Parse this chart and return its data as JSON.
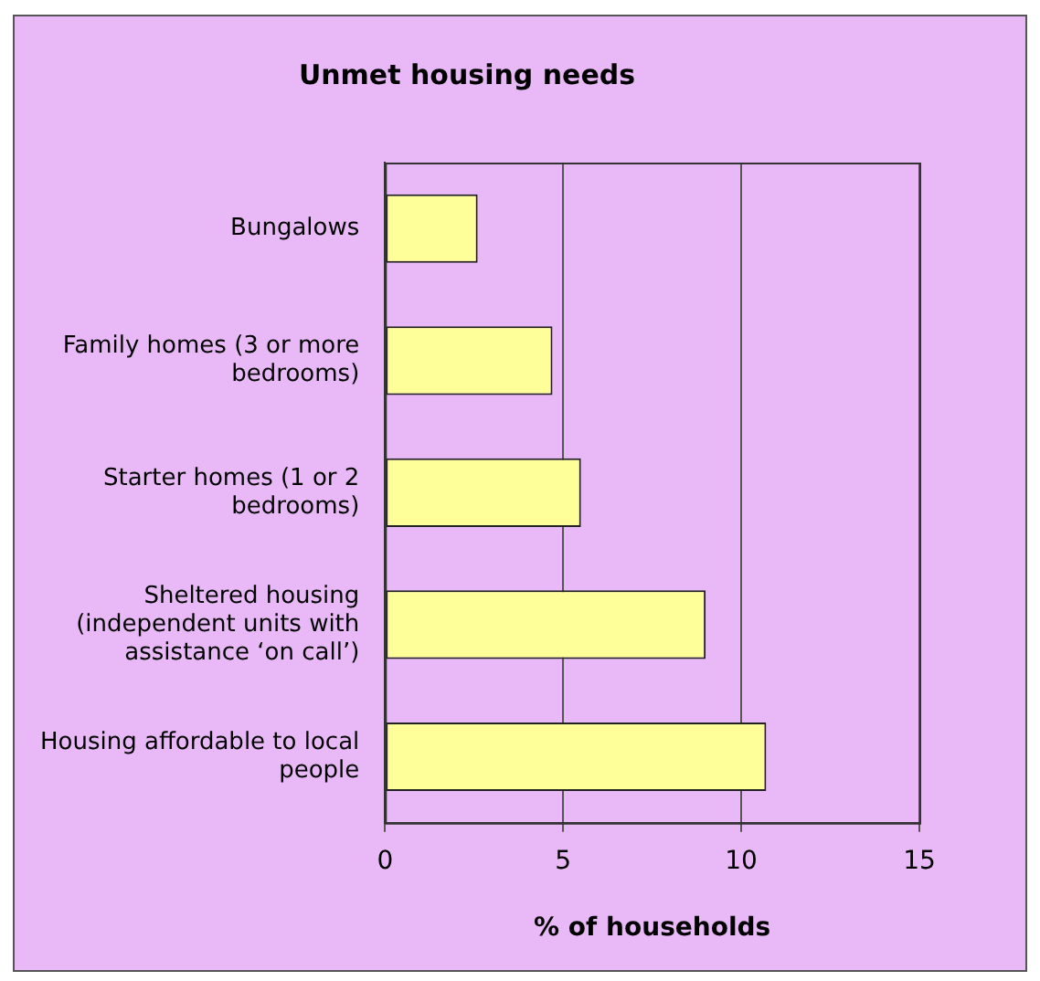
{
  "chart_data": {
    "type": "bar",
    "orientation": "horizontal",
    "title": "Unmet housing needs",
    "xlabel": "% of households",
    "categories": [
      "Bungalows",
      "Family homes (3 or more bedrooms)",
      "Starter homes (1 or 2 bedrooms)",
      "Sheltered housing (independent units with assistance ‘on call’)",
      "Housing affordable to local people"
    ],
    "values": [
      2.6,
      4.7,
      5.5,
      9.0,
      10.7
    ],
    "color": "#ffff99",
    "xlim": [
      0,
      15
    ],
    "xticks": [
      0,
      5,
      10,
      15
    ],
    "grid": "x",
    "legend": false
  }
}
